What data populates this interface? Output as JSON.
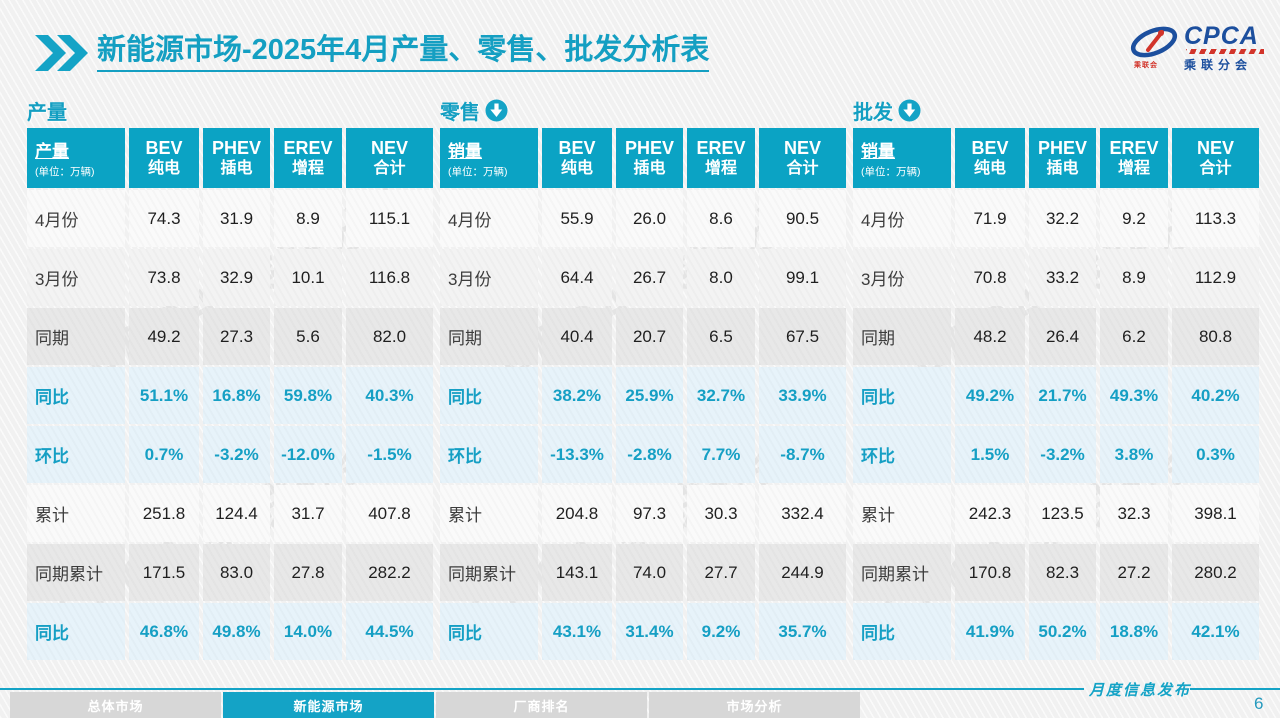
{
  "title": {
    "highlight": "新能源市场",
    "rest": "-2025年4月产量、零售、批发分析表"
  },
  "logo": {
    "name": "CPCA",
    "subtitle": "乘联分会",
    "seal": "乘联会"
  },
  "watermark": "CPCA 乘联分会",
  "colors": {
    "accent": "#14a3c6",
    "header_bg": "#0ba3c4",
    "pct_text": "#159fc4",
    "logo_blue": "#1c4f9e",
    "logo_red": "#d2342a"
  },
  "sections": [
    {
      "id": "production",
      "heading": "产量",
      "arrow": false,
      "table": {
        "corner_label": "产量",
        "corner_unit": "(单位：万辆)",
        "columns": [
          [
            "BEV",
            "纯电"
          ],
          [
            "PHEV",
            "插电"
          ],
          [
            "EREV",
            "增程"
          ],
          [
            "NEV",
            "合计"
          ]
        ],
        "rows": [
          {
            "label": "4月份",
            "style": "white",
            "values": [
              "74.3",
              "31.9",
              "8.9",
              "115.1"
            ]
          },
          {
            "label": "3月份",
            "style": "white2",
            "values": [
              "73.8",
              "32.9",
              "10.1",
              "116.8"
            ]
          },
          {
            "label": "同期",
            "style": "gray",
            "values": [
              "49.2",
              "27.3",
              "5.6",
              "82.0"
            ]
          },
          {
            "label": "同比",
            "style": "pct",
            "values": [
              "51.1%",
              "16.8%",
              "59.8%",
              "40.3%"
            ]
          },
          {
            "label": "环比",
            "style": "pct",
            "values": [
              "0.7%",
              "-3.2%",
              "-12.0%",
              "-1.5%"
            ]
          },
          {
            "label": "累计",
            "style": "white",
            "values": [
              "251.8",
              "124.4",
              "31.7",
              "407.8"
            ]
          },
          {
            "label": "同期累计",
            "style": "gray",
            "values": [
              "171.5",
              "83.0",
              "27.8",
              "282.2"
            ]
          },
          {
            "label": "同比",
            "style": "pct",
            "values": [
              "46.8%",
              "49.8%",
              "14.0%",
              "44.5%"
            ]
          }
        ]
      }
    },
    {
      "id": "retail",
      "heading": "零售",
      "arrow": true,
      "table": {
        "corner_label": "销量",
        "corner_unit": "(单位：万辆)",
        "columns": [
          [
            "BEV",
            "纯电"
          ],
          [
            "PHEV",
            "插电"
          ],
          [
            "EREV",
            "增程"
          ],
          [
            "NEV",
            "合计"
          ]
        ],
        "rows": [
          {
            "label": "4月份",
            "style": "white",
            "values": [
              "55.9",
              "26.0",
              "8.6",
              "90.5"
            ]
          },
          {
            "label": "3月份",
            "style": "white2",
            "values": [
              "64.4",
              "26.7",
              "8.0",
              "99.1"
            ]
          },
          {
            "label": "同期",
            "style": "gray",
            "values": [
              "40.4",
              "20.7",
              "6.5",
              "67.5"
            ]
          },
          {
            "label": "同比",
            "style": "pct",
            "values": [
              "38.2%",
              "25.9%",
              "32.7%",
              "33.9%"
            ]
          },
          {
            "label": "环比",
            "style": "pct",
            "values": [
              "-13.3%",
              "-2.8%",
              "7.7%",
              "-8.7%"
            ]
          },
          {
            "label": "累计",
            "style": "white",
            "values": [
              "204.8",
              "97.3",
              "30.3",
              "332.4"
            ]
          },
          {
            "label": "同期累计",
            "style": "gray",
            "values": [
              "143.1",
              "74.0",
              "27.7",
              "244.9"
            ]
          },
          {
            "label": "同比",
            "style": "pct",
            "values": [
              "43.1%",
              "31.4%",
              "9.2%",
              "35.7%"
            ]
          }
        ]
      }
    },
    {
      "id": "wholesale",
      "heading": "批发",
      "arrow": true,
      "table": {
        "corner_label": "销量",
        "corner_unit": "(单位：万辆)",
        "columns": [
          [
            "BEV",
            "纯电"
          ],
          [
            "PHEV",
            "插电"
          ],
          [
            "EREV",
            "增程"
          ],
          [
            "NEV",
            "合计"
          ]
        ],
        "rows": [
          {
            "label": "4月份",
            "style": "white",
            "values": [
              "71.9",
              "32.2",
              "9.2",
              "113.3"
            ]
          },
          {
            "label": "3月份",
            "style": "white2",
            "values": [
              "70.8",
              "33.2",
              "8.9",
              "112.9"
            ]
          },
          {
            "label": "同期",
            "style": "gray",
            "values": [
              "48.2",
              "26.4",
              "6.2",
              "80.8"
            ]
          },
          {
            "label": "同比",
            "style": "pct",
            "values": [
              "49.2%",
              "21.7%",
              "49.3%",
              "40.2%"
            ]
          },
          {
            "label": "环比",
            "style": "pct",
            "values": [
              "1.5%",
              "-3.2%",
              "3.8%",
              "0.3%"
            ]
          },
          {
            "label": "累计",
            "style": "white",
            "values": [
              "242.3",
              "123.5",
              "32.3",
              "398.1"
            ]
          },
          {
            "label": "同期累计",
            "style": "gray",
            "values": [
              "170.8",
              "82.3",
              "27.2",
              "280.2"
            ]
          },
          {
            "label": "同比",
            "style": "pct",
            "values": [
              "41.9%",
              "50.2%",
              "18.8%",
              "42.1%"
            ]
          }
        ]
      }
    }
  ],
  "footer": {
    "tabs": [
      {
        "label": "总体市场",
        "active": false
      },
      {
        "label": "新能源市场",
        "active": true
      },
      {
        "label": "厂商排名",
        "active": false
      },
      {
        "label": "市场分析",
        "active": false
      }
    ],
    "release_note": "月度信息发布",
    "page": "6"
  }
}
